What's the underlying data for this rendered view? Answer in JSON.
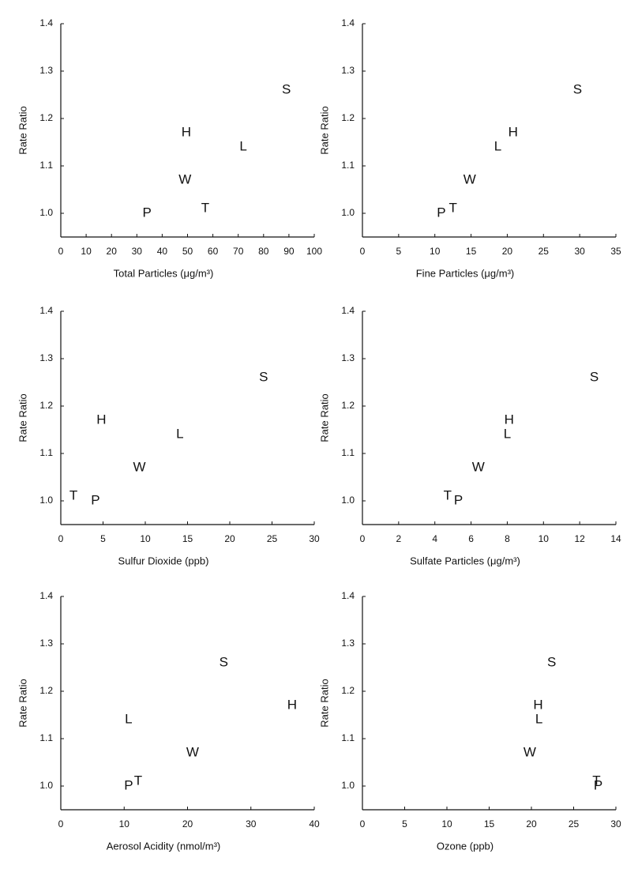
{
  "chart_data": [
    {
      "type": "scatter",
      "x_label": "Total Particles (μg/m³)",
      "y_label": "Rate Ratio",
      "point_labels": [
        "P",
        "T",
        "W",
        "L",
        "H",
        "S"
      ],
      "x": [
        34,
        57,
        49,
        72,
        49.5,
        89
      ],
      "values": [
        1.0,
        1.01,
        1.07,
        1.14,
        1.17,
        1.26
      ],
      "xlim": [
        0,
        100
      ],
      "ylim": [
        0.95,
        1.4
      ],
      "xticks": [
        0,
        10,
        20,
        30,
        40,
        50,
        60,
        70,
        80,
        90,
        100
      ],
      "yticks": [
        {
          "value": 1,
          "label": "1.0"
        },
        1.1,
        1.2,
        1.3,
        1.4
      ]
    },
    {
      "type": "scatter",
      "x_label": "Fine Particles (μg/m³)",
      "y_label": "Rate Ratio",
      "point_labels": [
        "P",
        "T",
        "W",
        "L",
        "H",
        "S"
      ],
      "x": [
        10.9,
        12.5,
        14.8,
        18.7,
        20.8,
        29.7
      ],
      "values": [
        1.0,
        1.01,
        1.07,
        1.14,
        1.17,
        1.26
      ],
      "xlim": [
        0,
        35
      ],
      "ylim": [
        0.95,
        1.4
      ],
      "xticks": [
        0,
        5,
        10,
        15,
        20,
        25,
        30,
        35
      ],
      "yticks": [
        {
          "value": 1,
          "label": "1.0"
        },
        1.1,
        1.2,
        1.3,
        1.4
      ]
    },
    {
      "type": "scatter",
      "x_label": "Sulfur Dioxide (ppb)",
      "y_label": "Rate Ratio",
      "point_labels": [
        "P",
        "T",
        "W",
        "L",
        "H",
        "S"
      ],
      "x": [
        4.1,
        1.5,
        9.3,
        14.1,
        4.8,
        24
      ],
      "values": [
        1.0,
        1.01,
        1.07,
        1.14,
        1.17,
        1.26
      ],
      "xlim": [
        0,
        30
      ],
      "ylim": [
        0.95,
        1.4
      ],
      "xticks": [
        0,
        5,
        10,
        15,
        20,
        25,
        30
      ],
      "yticks": [
        {
          "value": 1,
          "label": "1.0"
        },
        1.1,
        1.2,
        1.3,
        1.4
      ]
    },
    {
      "type": "scatter",
      "x_label": "Sulfate Particles (μg/m³)",
      "y_label": "Rate Ratio",
      "point_labels": [
        "P",
        "T",
        "W",
        "L",
        "H",
        "S"
      ],
      "x": [
        5.3,
        4.7,
        6.4,
        8.0,
        8.1,
        12.8
      ],
      "values": [
        1.0,
        1.01,
        1.07,
        1.14,
        1.17,
        1.26
      ],
      "xlim": [
        0,
        14
      ],
      "ylim": [
        0.95,
        1.4
      ],
      "xticks": [
        0,
        2,
        4,
        6,
        8,
        10,
        12,
        14
      ],
      "yticks": [
        {
          "value": 1,
          "label": "1.0"
        },
        1.1,
        1.2,
        1.3,
        1.4
      ]
    },
    {
      "type": "scatter",
      "x_label": "Aerosol Acidity (nmol/m³)",
      "y_label": "Rate Ratio",
      "point_labels": [
        "P",
        "T",
        "W",
        "L",
        "H",
        "S"
      ],
      "x": [
        10.7,
        12.2,
        20.8,
        10.7,
        36.5,
        25.7
      ],
      "values": [
        1.0,
        1.01,
        1.07,
        1.14,
        1.17,
        1.26
      ],
      "xlim": [
        0,
        40
      ],
      "ylim": [
        0.95,
        1.4
      ],
      "xticks": [
        0,
        10,
        20,
        30,
        40
      ],
      "yticks": [
        {
          "value": 1,
          "label": "1.0"
        },
        1.1,
        1.2,
        1.3,
        1.4
      ]
    },
    {
      "type": "scatter",
      "x_label": "Ozone (ppb)",
      "y_label": "Rate Ratio",
      "point_labels": [
        "P",
        "T",
        "W",
        "L",
        "H",
        "S"
      ],
      "x": [
        27.9,
        27.7,
        19.8,
        20.9,
        20.8,
        22.4
      ],
      "values": [
        1.0,
        1.01,
        1.07,
        1.14,
        1.17,
        1.26
      ],
      "xlim": [
        0,
        30
      ],
      "ylim": [
        0.95,
        1.4
      ],
      "xticks": [
        0,
        5,
        10,
        15,
        20,
        25,
        30
      ],
      "yticks": [
        {
          "value": 1,
          "label": "1.0"
        },
        1.1,
        1.2,
        1.3,
        1.4
      ]
    }
  ]
}
